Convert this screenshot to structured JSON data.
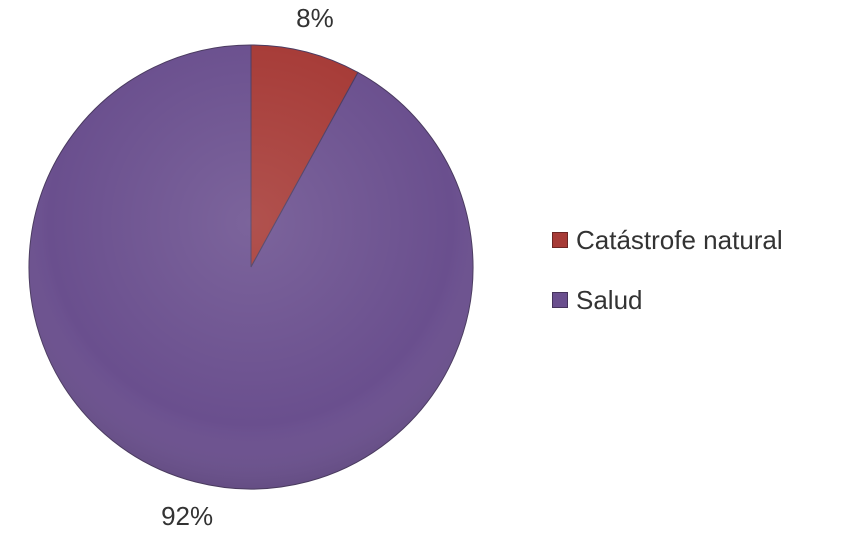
{
  "chart_data": {
    "type": "pie",
    "title": "",
    "slices": [
      {
        "label": "Catástrofe natural",
        "value": 8,
        "value_label": "8%",
        "color": "#A63A36"
      },
      {
        "label": "Salud",
        "value": 92,
        "value_label": "92%",
        "color": "#6A4F8E"
      }
    ],
    "legend_position": "right",
    "start_angle": "top (12 o'clock), clockwise"
  }
}
